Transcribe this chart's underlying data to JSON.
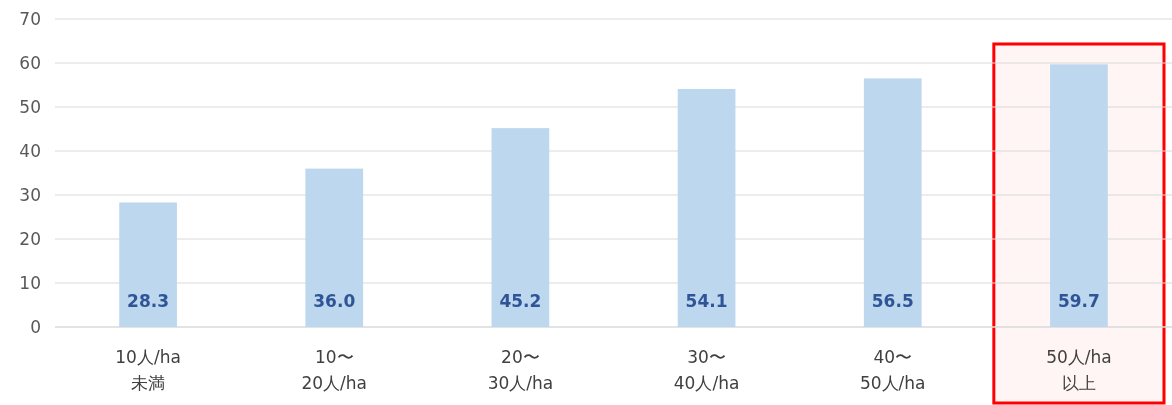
{
  "chart_data": {
    "type": "bar",
    "categories": [
      "10人/ha\n未満",
      "10〜\n20人/ha",
      "20〜\n30人/ha",
      "30〜\n40人/ha",
      "40〜\n50人/ha",
      "50人/ha\n以上"
    ],
    "values": [
      28.3,
      36.0,
      45.2,
      54.1,
      56.5,
      59.7
    ],
    "value_labels": [
      "28.3",
      "36.0",
      "45.2",
      "54.1",
      "56.5",
      "59.7"
    ],
    "color": "#bdd7ee",
    "ylim": [
      0,
      70
    ],
    "yticks": [
      0,
      10,
      20,
      30,
      40,
      50,
      60,
      70
    ],
    "grid": "y",
    "bands": [
      {
        "axis": "x",
        "from": "50人/ha\n以上",
        "to": "50人/ha\n以上",
        "color": "#ff0000"
      }
    ]
  }
}
